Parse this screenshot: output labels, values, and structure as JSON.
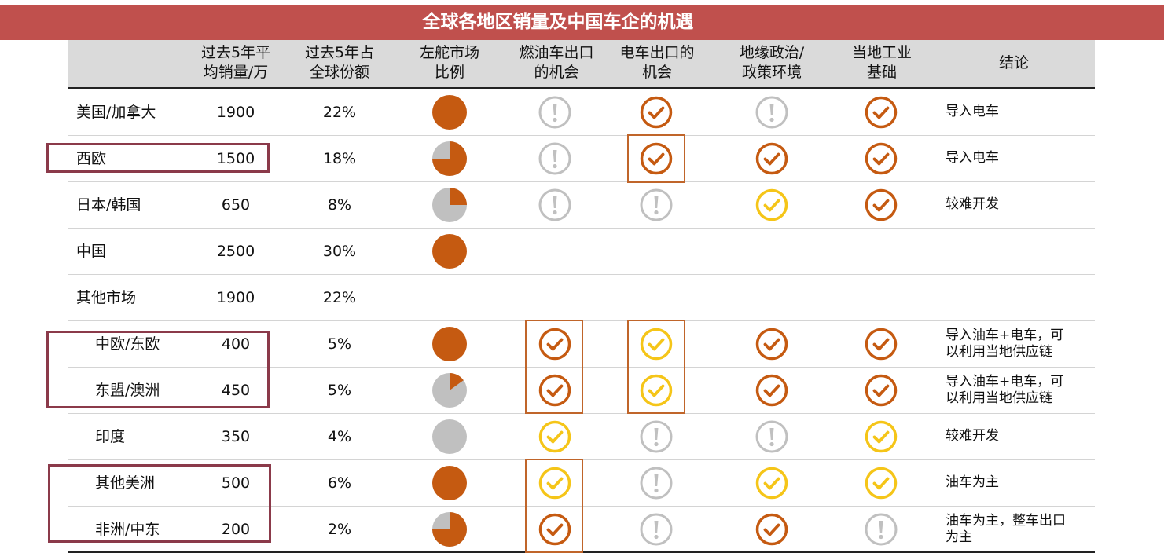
{
  "title": "全球各地区销量及中国车企的机遇",
  "columns": [
    "",
    "过去5年平\n均销量/万",
    "过去5年占\n全球份额",
    "左舵市场\n比例",
    "燃油车出口\n的机会",
    "电车出口的\n机会",
    "地缘政治/\n政策环境",
    "当地工业\n基础",
    "结论"
  ],
  "colors": {
    "banner": "#c0504d",
    "dark_orange": "#c55a11",
    "yellow": "#f5c518",
    "gray": "#c0c0c0",
    "highlight_box": "#c0652a",
    "red_box": "#8b3a4a"
  },
  "rows": [
    {
      "region": "美国/加拿大",
      "indent": false,
      "sales": "1900",
      "share": "22%",
      "lhd": 1.0,
      "ice": "exclaim",
      "ev": "check-dark",
      "geo": "exclaim",
      "ind": "check-dark",
      "conclusion": "导入电车"
    },
    {
      "region": "西欧",
      "indent": false,
      "sales": "1500",
      "share": "18%",
      "lhd": 0.75,
      "ice": "exclaim",
      "ev": "check-dark",
      "geo": "check-dark",
      "ind": "check-dark",
      "conclusion": "导入电车"
    },
    {
      "region": "日本/韩国",
      "indent": false,
      "sales": "650",
      "share": "8%",
      "lhd": 0.25,
      "ice": "exclaim",
      "ev": "exclaim",
      "geo": "check-yellow",
      "ind": "check-dark",
      "conclusion": "较难开发"
    },
    {
      "region": "中国",
      "indent": false,
      "sales": "2500",
      "share": "30%",
      "lhd": 1.0,
      "ice": "",
      "ev": "",
      "geo": "",
      "ind": "",
      "conclusion": ""
    },
    {
      "region": "其他市场",
      "indent": false,
      "sales": "1900",
      "share": "22%",
      "lhd": null,
      "ice": "",
      "ev": "",
      "geo": "",
      "ind": "",
      "conclusion": ""
    },
    {
      "region": "中欧/东欧",
      "indent": true,
      "sales": "400",
      "share": "5%",
      "lhd": 1.0,
      "ice": "check-dark",
      "ev": "check-yellow",
      "geo": "check-dark",
      "ind": "check-dark",
      "conclusion": "导入油车+电车，可\n以利用当地供应链"
    },
    {
      "region": "东盟/澳洲",
      "indent": true,
      "sales": "450",
      "share": "5%",
      "lhd": 0.15,
      "ice": "check-dark",
      "ev": "check-yellow",
      "geo": "check-dark",
      "ind": "check-dark",
      "conclusion": "导入油车+电车，可\n以利用当地供应链"
    },
    {
      "region": "印度",
      "indent": true,
      "sales": "350",
      "share": "4%",
      "lhd": 0.0,
      "ice": "check-yellow",
      "ev": "exclaim",
      "geo": "exclaim",
      "ind": "check-yellow",
      "conclusion": "较难开发"
    },
    {
      "region": "其他美洲",
      "indent": true,
      "sales": "500",
      "share": "6%",
      "lhd": 1.0,
      "ice": "check-yellow",
      "ev": "exclaim",
      "geo": "check-yellow",
      "ind": "check-yellow",
      "conclusion": "油车为主"
    },
    {
      "region": "非洲/中东",
      "indent": true,
      "sales": "200",
      "share": "2%",
      "lhd": 0.75,
      "ice": "check-dark",
      "ev": "exclaim",
      "geo": "check-dark",
      "ind": "exclaim",
      "conclusion": "油车为主，整车出口\n为主"
    }
  ]
}
